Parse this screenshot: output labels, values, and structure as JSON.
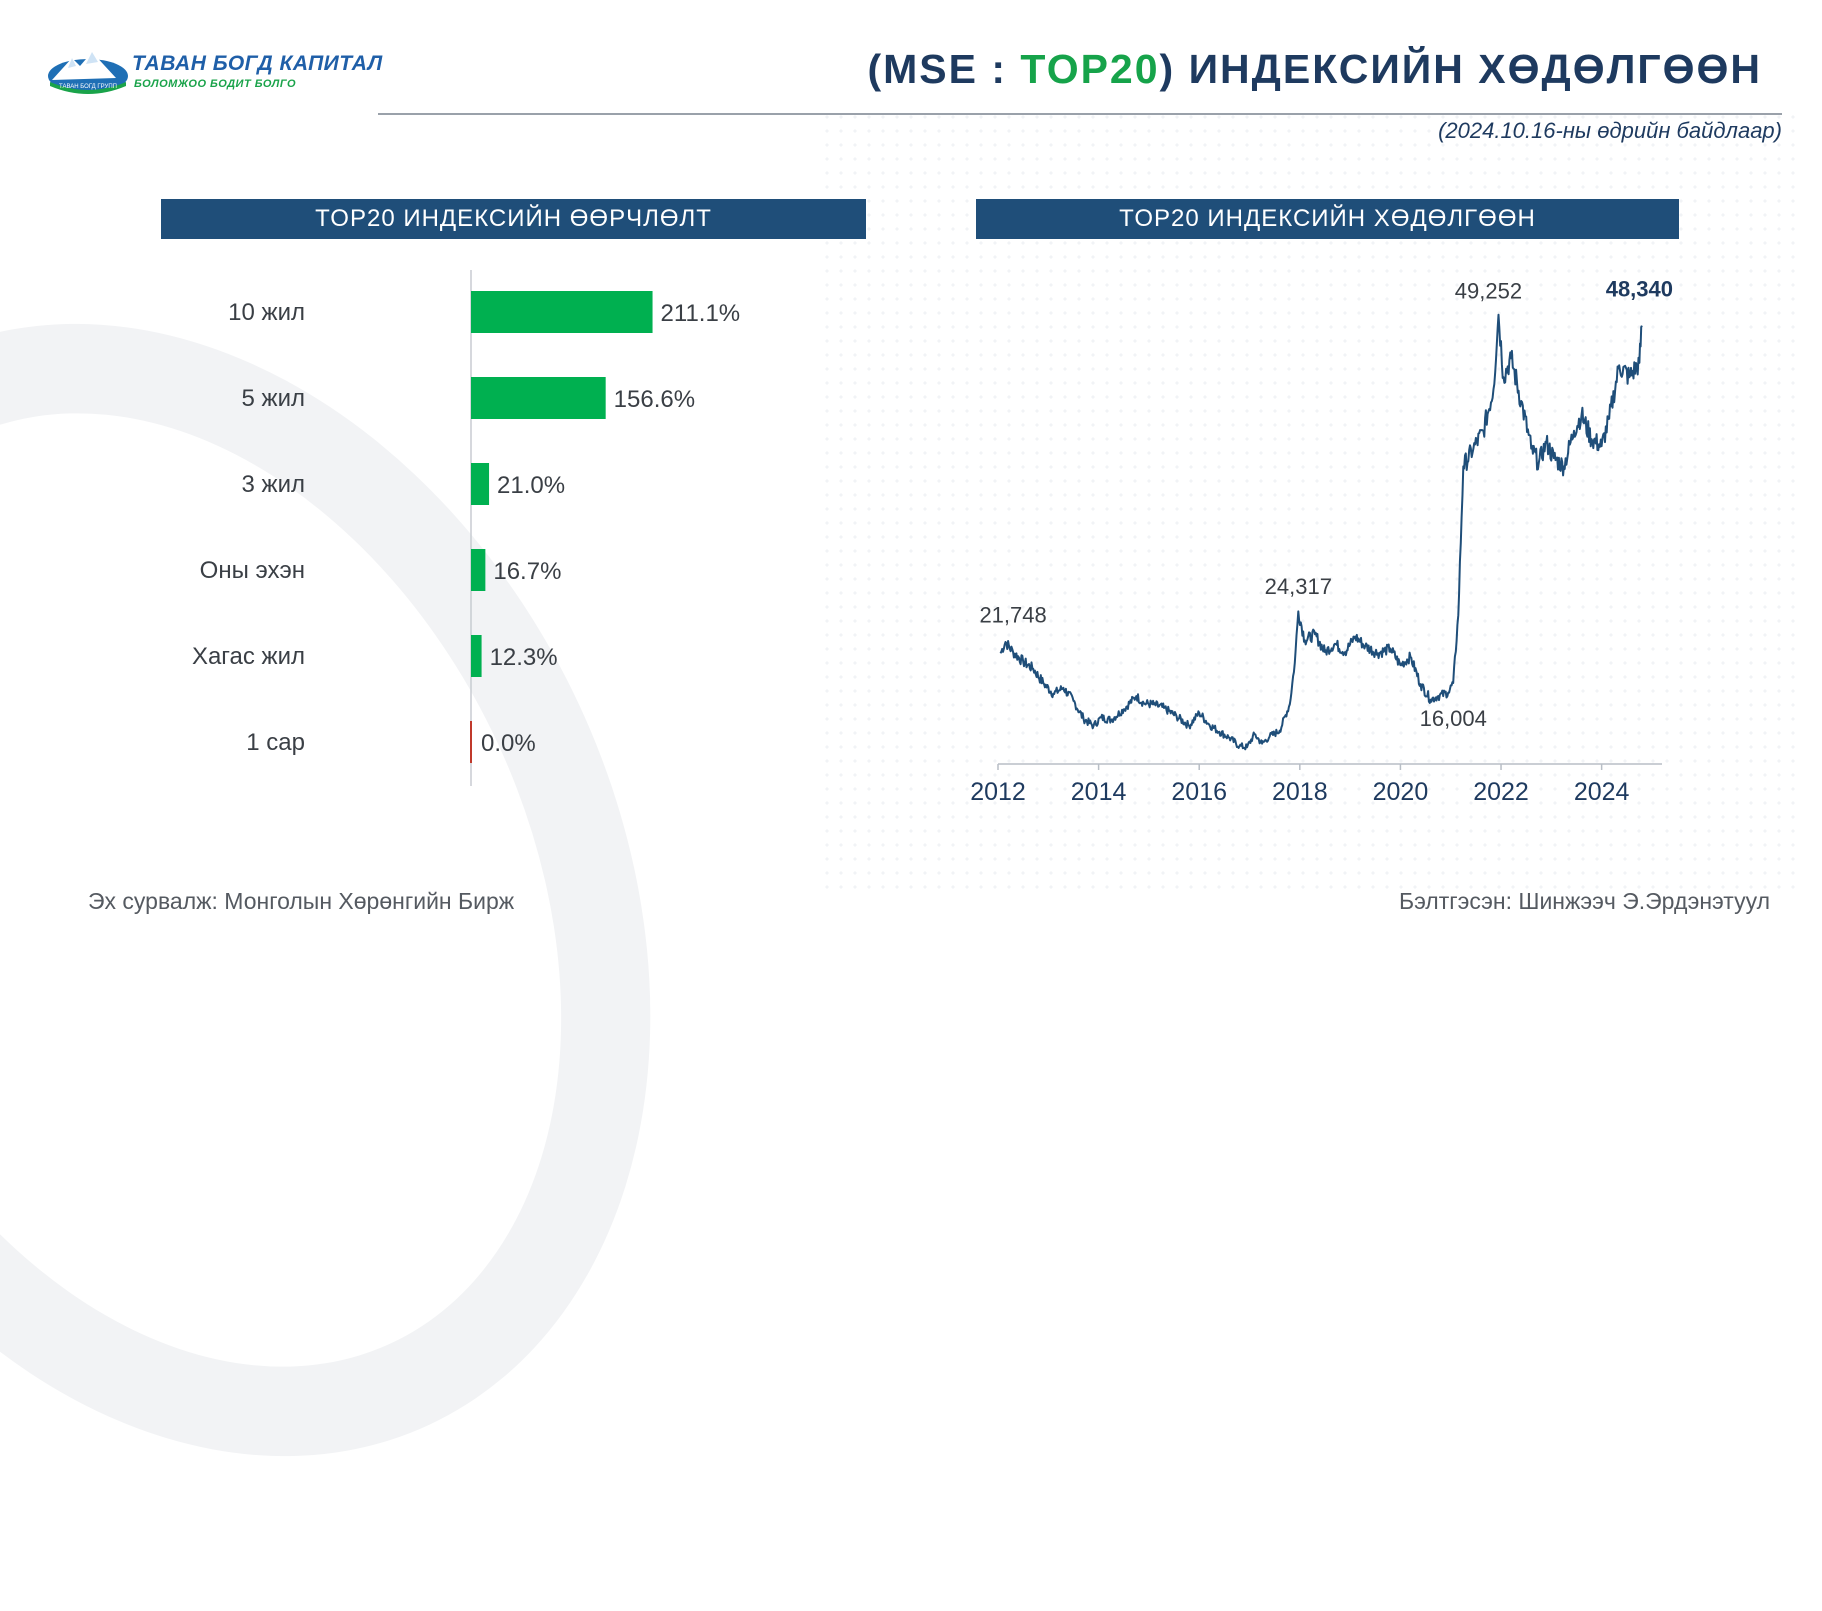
{
  "logo": {
    "name": "ТАВАН БОГД КАПИТАЛ",
    "slogan": "БОЛОМЖОО БОДИТ БОЛГО",
    "badge": "ТАВАН БОГД ГРУПП"
  },
  "header": {
    "title_prefix": "(MSE : ",
    "title_highlight": "TOP20",
    "title_suffix": ") ИНДЕКСИЙН ХӨДӨЛГӨӨН",
    "date_note": "(2024.10.16-ны өдрийн байдлаар)"
  },
  "left_panel": {
    "title": "TOP20 ИНДЕКСИЙН ӨӨРЧЛӨЛТ"
  },
  "right_panel": {
    "title": "TOP20 ИНДЕКСИЙН ХӨДӨЛГӨӨН"
  },
  "footer": {
    "source": "Эх сурвалж:  Монголын Хөрөнгийн Бирж",
    "author": "Бэлтгэсэн: Шинжээч Э.Эрдэнэтуул"
  },
  "colors": {
    "bar_positive": "#00b050",
    "bar_zero": "#c0392b",
    "line": "#1f4e79",
    "header_bg": "#1f4e79",
    "title_highlight": "#16a34a",
    "title_text": "#1e3a5f"
  },
  "chart_data": [
    {
      "type": "bar",
      "orientation": "horizontal",
      "title": "TOP20 ИНДЕКСИЙН ӨӨРЧЛӨЛТ",
      "categories": [
        "10 жил",
        "5 жил",
        "3 жил",
        "Оны эхэн",
        "Хагас жил",
        "1 сар"
      ],
      "values": [
        211.1,
        156.6,
        21.0,
        16.7,
        12.3,
        0.0
      ],
      "labels": [
        "211.1%",
        "156.6%",
        "21.0%",
        "16.7%",
        "12.3%",
        "0.0%"
      ],
      "unit": "%"
    },
    {
      "type": "line",
      "title": "TOP20 ИНДЕКСИЙН ХӨДӨЛГӨӨН",
      "x_ticks": [
        "2012",
        "2014",
        "2016",
        "2018",
        "2020",
        "2022",
        "2024"
      ],
      "xlim": [
        2012,
        2025.2
      ],
      "ylim": [
        12000,
        52000
      ],
      "points": [
        [
          2012.05,
          20800
        ],
        [
          2012.15,
          21748
        ],
        [
          2012.3,
          20900
        ],
        [
          2012.5,
          20100
        ],
        [
          2012.7,
          19500
        ],
        [
          2012.9,
          18300
        ],
        [
          2013.1,
          17400
        ],
        [
          2013.3,
          17900
        ],
        [
          2013.5,
          16800
        ],
        [
          2013.7,
          15300
        ],
        [
          2013.9,
          14700
        ],
        [
          2014.05,
          15400
        ],
        [
          2014.25,
          15200
        ],
        [
          2014.5,
          16100
        ],
        [
          2014.75,
          17200
        ],
        [
          2014.9,
          16600
        ],
        [
          2015.1,
          16500
        ],
        [
          2015.3,
          16200
        ],
        [
          2015.55,
          15500
        ],
        [
          2015.8,
          14700
        ],
        [
          2016.0,
          15800
        ],
        [
          2016.2,
          14800
        ],
        [
          2016.4,
          14200
        ],
        [
          2016.6,
          13700
        ],
        [
          2016.8,
          13000
        ],
        [
          2016.95,
          12900
        ],
        [
          2017.1,
          14000
        ],
        [
          2017.25,
          13200
        ],
        [
          2017.4,
          13800
        ],
        [
          2017.6,
          14300
        ],
        [
          2017.8,
          16500
        ],
        [
          2017.9,
          20000
        ],
        [
          2017.97,
          24317
        ],
        [
          2018.1,
          21900
        ],
        [
          2018.3,
          22400
        ],
        [
          2018.5,
          20900
        ],
        [
          2018.7,
          21600
        ],
        [
          2018.9,
          20900
        ],
        [
          2019.1,
          22200
        ],
        [
          2019.3,
          21400
        ],
        [
          2019.55,
          20800
        ],
        [
          2019.8,
          21200
        ],
        [
          2020.0,
          19800
        ],
        [
          2020.2,
          20500
        ],
        [
          2020.4,
          18200
        ],
        [
          2020.6,
          16900
        ],
        [
          2020.75,
          17200
        ],
        [
          2020.95,
          17500
        ],
        [
          2021.05,
          18300
        ],
        [
          2021.15,
          24000
        ],
        [
          2021.25,
          36500
        ],
        [
          2021.45,
          38000
        ],
        [
          2021.65,
          39500
        ],
        [
          2021.85,
          43000
        ],
        [
          2021.95,
          49252
        ],
        [
          2022.05,
          44000
        ],
        [
          2022.2,
          45600
        ],
        [
          2022.4,
          42000
        ],
        [
          2022.6,
          38000
        ],
        [
          2022.75,
          36800
        ],
        [
          2022.9,
          38500
        ],
        [
          2023.05,
          37200
        ],
        [
          2023.25,
          36500
        ],
        [
          2023.45,
          39500
        ],
        [
          2023.6,
          40800
        ],
        [
          2023.8,
          38800
        ],
        [
          2024.0,
          38200
        ],
        [
          2024.15,
          40500
        ],
        [
          2024.35,
          45000
        ],
        [
          2024.55,
          44000
        ],
        [
          2024.75,
          45200
        ],
        [
          2024.8,
          48340
        ]
      ],
      "annotations": [
        {
          "label": "21,748"
        },
        {
          "label": "24,317"
        },
        {
          "label": "16,004"
        },
        {
          "label": "49,252"
        },
        {
          "label": "48,340",
          "bold": true
        }
      ]
    }
  ]
}
